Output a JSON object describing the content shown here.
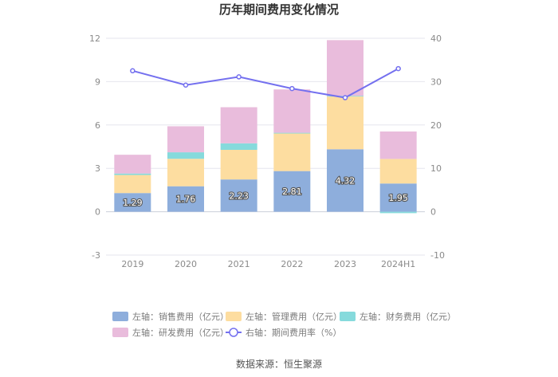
{
  "chart_data": {
    "type": "bar",
    "title": "历年期间费用变化情况",
    "categories": [
      "2019",
      "2020",
      "2021",
      "2022",
      "2023",
      "2024H1"
    ],
    "series": [
      {
        "name": "左轴：销售费用（亿元）",
        "type": "bar",
        "axis": "left",
        "color": "#8eaedc",
        "values": [
          1.29,
          1.76,
          2.23,
          2.81,
          4.32,
          1.95
        ]
      },
      {
        "name": "左轴：管理费用（亿元）",
        "type": "bar",
        "axis": "left",
        "color": "#fdddA0",
        "values": [
          1.25,
          1.9,
          2.05,
          2.6,
          3.65,
          1.7
        ]
      },
      {
        "name": "左轴：财务费用（亿元）",
        "type": "bar",
        "axis": "left",
        "color": "#86dadc",
        "values": [
          0.1,
          0.45,
          0.45,
          0.05,
          0.05,
          -0.1
        ]
      },
      {
        "name": "左轴：研发费用（亿元）",
        "type": "bar",
        "axis": "left",
        "color": "#e9bcdc",
        "values": [
          1.3,
          1.8,
          2.5,
          3.0,
          3.85,
          1.9
        ]
      },
      {
        "name": "右轴：期间费用率（%）",
        "type": "line",
        "axis": "right",
        "color": "#7470ef",
        "values": [
          32.5,
          29.2,
          31.1,
          28.4,
          26.3,
          33.0
        ]
      }
    ],
    "data_labels": [
      "1.29",
      "1.76",
      "2.23",
      "2.81",
      "4.32",
      "1.95"
    ],
    "left_axis": {
      "ticks": [
        "12",
        "9",
        "6",
        "3",
        "0",
        "-3"
      ],
      "ylim": [
        -3,
        12
      ]
    },
    "right_axis": {
      "ticks": [
        "40",
        "30",
        "20",
        "10",
        "0",
        "-10"
      ],
      "ylim": [
        -10,
        40
      ]
    },
    "grid": true,
    "legend_position": "bottom"
  },
  "source": "数据来源：恒生聚源"
}
